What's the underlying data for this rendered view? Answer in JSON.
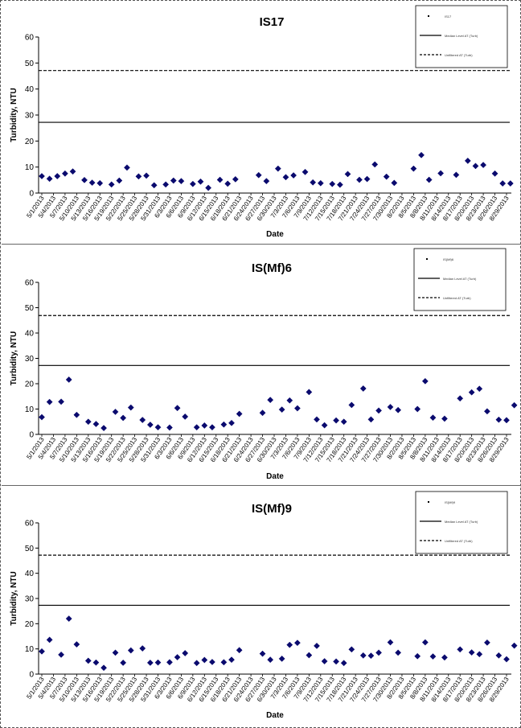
{
  "dates": [
    "5/1/2013",
    "5/4/2013",
    "5/7/2013",
    "5/10/2013",
    "5/13/2013",
    "5/16/2013",
    "5/19/2013",
    "5/22/2013",
    "5/25/2013",
    "5/28/2013",
    "5/31/2013",
    "6/3/2013",
    "6/6/2013",
    "6/9/2013",
    "6/12/2013",
    "6/15/2013",
    "6/18/2013",
    "6/21/2013",
    "6/24/2013",
    "6/27/2013",
    "6/30/2013",
    "7/3/2013",
    "7/6/2013",
    "7/9/2013",
    "7/12/2013",
    "7/15/2013",
    "7/18/2013",
    "7/21/2013",
    "7/24/2013",
    "7/27/2013",
    "7/30/2013",
    "8/2/2013",
    "8/5/2013",
    "8/8/2013",
    "8/11/2013",
    "8/14/2013",
    "8/17/2013",
    "8/20/2013",
    "8/23/2013",
    "8/26/2013",
    "8/29/2013"
  ],
  "chart_data": [
    {
      "type": "scatter",
      "title": "IS17",
      "xlabel": "Date",
      "ylabel": "Turbidity, NTU",
      "ylim": [
        0,
        60
      ],
      "yticks": [
        "0",
        "10",
        "20",
        "30",
        "40",
        "50",
        "60"
      ],
      "grid": false,
      "legend_position": "top-right",
      "legend": [
        "IS17",
        "Median Level AT (Turb)",
        "Unfiltered AT (Turb)"
      ],
      "reference_lines": [
        {
          "style": "solid",
          "value": 27.2
        },
        {
          "style": "dashed",
          "value": 47.1
        }
      ],
      "series": [
        {
          "marker": "diamond",
          "color": "#0a0a6e",
          "points": [
            [
              "5/1/2013",
              6.5
            ],
            [
              "5/3/2013",
              5.5
            ],
            [
              "5/5/2013",
              6.5
            ],
            [
              "5/7/2013",
              7.5
            ],
            [
              "5/9/2013",
              8.3
            ],
            [
              "5/12/2013",
              5.0
            ],
            [
              "5/14/2013",
              4.0
            ],
            [
              "5/16/2013",
              3.8
            ],
            [
              "5/19/2013",
              3.3
            ],
            [
              "5/21/2013",
              4.8
            ],
            [
              "5/23/2013",
              9.8
            ],
            [
              "5/26/2013",
              6.4
            ],
            [
              "5/28/2013",
              6.7
            ],
            [
              "5/30/2013",
              3.0
            ],
            [
              "6/2/2013",
              3.3
            ],
            [
              "6/4/2013",
              4.8
            ],
            [
              "6/6/2013",
              4.6
            ],
            [
              "6/9/2013",
              3.5
            ],
            [
              "6/11/2013",
              4.4
            ],
            [
              "6/13/2013",
              2.0
            ],
            [
              "6/16/2013",
              5.1
            ],
            [
              "6/18/2013",
              3.6
            ],
            [
              "6/20/2013",
              5.3
            ],
            [
              "6/26/2013",
              6.9
            ],
            [
              "6/28/2013",
              4.6
            ],
            [
              "7/1/2013",
              9.4
            ],
            [
              "7/3/2013",
              6.1
            ],
            [
              "7/5/2013",
              6.8
            ],
            [
              "7/8/2013",
              8.1
            ],
            [
              "7/10/2013",
              4.1
            ],
            [
              "7/12/2013",
              3.8
            ],
            [
              "7/15/2013",
              3.5
            ],
            [
              "7/17/2013",
              3.2
            ],
            [
              "7/19/2013",
              7.3
            ],
            [
              "7/22/2013",
              5.1
            ],
            [
              "7/24/2013",
              5.4
            ],
            [
              "7/26/2013",
              11.0
            ],
            [
              "7/29/2013",
              6.3
            ],
            [
              "7/31/2013",
              3.9
            ],
            [
              "8/5/2013",
              9.4
            ],
            [
              "8/7/2013",
              14.6
            ],
            [
              "8/9/2013",
              5.1
            ],
            [
              "8/12/2013",
              7.6
            ],
            [
              "8/16/2013",
              7.0
            ],
            [
              "8/19/2013",
              12.4
            ],
            [
              "8/21/2013",
              10.4
            ],
            [
              "8/23/2013",
              10.8
            ],
            [
              "8/26/2013",
              7.5
            ],
            [
              "8/28/2013",
              3.7
            ],
            [
              "8/30/2013",
              3.7
            ]
          ]
        }
      ]
    },
    {
      "type": "scatter",
      "title": "IS(Mf)6",
      "xlabel": "Date",
      "ylabel": "Turbidity, NTU",
      "ylim": [
        0,
        60
      ],
      "yticks": [
        "0",
        "10",
        "20",
        "30",
        "40",
        "50",
        "60"
      ],
      "grid": false,
      "legend_position": "top-right",
      "legend": [
        "IS(Mf)6",
        "Median Level AT (Turb)",
        "Unfiltered AT (Turb)"
      ],
      "reference_lines": [
        {
          "style": "solid",
          "value": 27.2
        },
        {
          "style": "dashed",
          "value": 46.9
        }
      ],
      "series": [
        {
          "marker": "diamond",
          "color": "#0a0a6e",
          "points": [
            [
              "5/1/2013",
              6.8
            ],
            [
              "5/3/2013",
              12.8
            ],
            [
              "5/6/2013",
              12.9
            ],
            [
              "5/8/2013",
              21.6
            ],
            [
              "5/10/2013",
              7.7
            ],
            [
              "5/13/2013",
              5.0
            ],
            [
              "5/15/2013",
              4.1
            ],
            [
              "5/17/2013",
              2.5
            ],
            [
              "5/20/2013",
              8.9
            ],
            [
              "5/22/2013",
              6.5
            ],
            [
              "5/24/2013",
              10.6
            ],
            [
              "5/27/2013",
              5.7
            ],
            [
              "5/29/2013",
              3.8
            ],
            [
              "5/31/2013",
              2.8
            ],
            [
              "6/3/2013",
              2.7
            ],
            [
              "6/5/2013",
              10.4
            ],
            [
              "6/7/2013",
              7.0
            ],
            [
              "6/10/2013",
              2.8
            ],
            [
              "6/12/2013",
              3.5
            ],
            [
              "6/14/2013",
              2.8
            ],
            [
              "6/17/2013",
              3.9
            ],
            [
              "6/19/2013",
              4.5
            ],
            [
              "6/21/2013",
              8.1
            ],
            [
              "6/27/2013",
              8.5
            ],
            [
              "6/29/2013",
              13.6
            ],
            [
              "7/2/2013",
              9.8
            ],
            [
              "7/4/2013",
              13.4
            ],
            [
              "7/6/2013",
              10.3
            ],
            [
              "7/9/2013",
              16.7
            ],
            [
              "7/11/2013",
              5.9
            ],
            [
              "7/13/2013",
              3.6
            ],
            [
              "7/16/2013",
              5.5
            ],
            [
              "7/18/2013",
              5.0
            ],
            [
              "7/20/2013",
              11.6
            ],
            [
              "7/23/2013",
              18.1
            ],
            [
              "7/25/2013",
              5.9
            ],
            [
              "7/27/2013",
              9.4
            ],
            [
              "7/30/2013",
              10.8
            ],
            [
              "8/1/2013",
              9.6
            ],
            [
              "8/6/2013",
              10.0
            ],
            [
              "8/8/2013",
              21.0
            ],
            [
              "8/10/2013",
              6.6
            ],
            [
              "8/13/2013",
              6.2
            ],
            [
              "8/17/2013",
              14.2
            ],
            [
              "8/20/2013",
              16.6
            ],
            [
              "8/22/2013",
              18.0
            ],
            [
              "8/24/2013",
              9.1
            ],
            [
              "8/27/2013",
              5.8
            ],
            [
              "8/29/2013",
              5.6
            ],
            [
              "8/31/2013",
              11.5
            ]
          ]
        }
      ]
    },
    {
      "type": "scatter",
      "title": "IS(Mf)9",
      "xlabel": "Date",
      "ylabel": "Turbidity, NTU",
      "ylim": [
        0,
        60
      ],
      "yticks": [
        "0",
        "10",
        "20",
        "30",
        "40",
        "50",
        "60"
      ],
      "grid": false,
      "legend_position": "top-right",
      "legend": [
        "IS(Mf)9",
        "Median Level AT (Turb)",
        "Unfiltered AT (Turb)"
      ],
      "reference_lines": [
        {
          "style": "solid",
          "value": 27.3
        },
        {
          "style": "dashed",
          "value": 47.2
        }
      ],
      "series": [
        {
          "marker": "diamond",
          "color": "#0a0a6e",
          "points": [
            [
              "5/1/2013",
              9.0
            ],
            [
              "5/3/2013",
              13.6
            ],
            [
              "5/6/2013",
              7.7
            ],
            [
              "5/8/2013",
              22.0
            ],
            [
              "5/10/2013",
              11.8
            ],
            [
              "5/13/2013",
              5.3
            ],
            [
              "5/15/2013",
              4.6
            ],
            [
              "5/17/2013",
              2.5
            ],
            [
              "5/20/2013",
              8.5
            ],
            [
              "5/22/2013",
              4.5
            ],
            [
              "5/24/2013",
              9.4
            ],
            [
              "5/27/2013",
              10.2
            ],
            [
              "5/29/2013",
              4.5
            ],
            [
              "5/31/2013",
              4.6
            ],
            [
              "6/3/2013",
              4.7
            ],
            [
              "6/5/2013",
              6.7
            ],
            [
              "6/7/2013",
              8.3
            ],
            [
              "6/10/2013",
              4.4
            ],
            [
              "6/12/2013",
              5.6
            ],
            [
              "6/14/2013",
              4.8
            ],
            [
              "6/17/2013",
              4.7
            ],
            [
              "6/19/2013",
              5.7
            ],
            [
              "6/21/2013",
              9.5
            ],
            [
              "6/27/2013",
              8.1
            ],
            [
              "6/29/2013",
              5.7
            ],
            [
              "7/2/2013",
              6.1
            ],
            [
              "7/4/2013",
              11.6
            ],
            [
              "7/6/2013",
              12.4
            ],
            [
              "7/9/2013",
              7.5
            ],
            [
              "7/11/2013",
              11.2
            ],
            [
              "7/13/2013",
              5.1
            ],
            [
              "7/16/2013",
              5.0
            ],
            [
              "7/18/2013",
              4.4
            ],
            [
              "7/20/2013",
              9.8
            ],
            [
              "7/23/2013",
              7.4
            ],
            [
              "7/25/2013",
              7.3
            ],
            [
              "7/27/2013",
              8.5
            ],
            [
              "7/30/2013",
              12.6
            ],
            [
              "8/1/2013",
              8.5
            ],
            [
              "8/6/2013",
              7.1
            ],
            [
              "8/8/2013",
              12.6
            ],
            [
              "8/10/2013",
              7.0
            ],
            [
              "8/13/2013",
              6.6
            ],
            [
              "8/17/2013",
              9.8
            ],
            [
              "8/20/2013",
              8.6
            ],
            [
              "8/22/2013",
              7.9
            ],
            [
              "8/24/2013",
              12.5
            ],
            [
              "8/27/2013",
              7.4
            ],
            [
              "8/29/2013",
              5.9
            ],
            [
              "8/31/2013",
              11.3
            ]
          ]
        }
      ]
    }
  ]
}
